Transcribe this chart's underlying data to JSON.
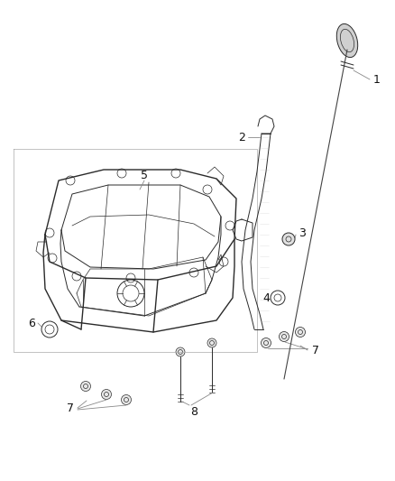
{
  "background_color": "#ffffff",
  "fig_width": 4.38,
  "fig_height": 5.33,
  "dpi": 100,
  "line_color": "#2a2a2a",
  "light_line": "#555555",
  "label_color": "#111111",
  "leader_color": "#888888"
}
